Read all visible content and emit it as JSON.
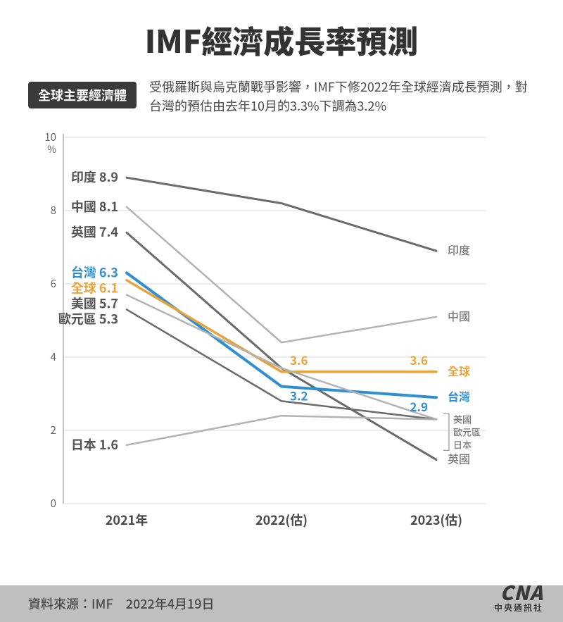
{
  "title": "IMF經濟成長率預測",
  "title_fontsize": 44,
  "pill_label": "全球主要經濟體",
  "pill_fontsize": 18,
  "subtitle": "受俄羅斯與烏克蘭戰爭影響，IMF下修2022年全球經濟成長預測，對台灣的預估由去年10月的3.3%下調為3.2%",
  "subtitle_fontsize": 18,
  "footer_source": "資料來源：IMF　2022年4月19日",
  "footer_fontsize": 18,
  "logo_big": "CNA",
  "logo_small": "中央通訊社",
  "chart": {
    "type": "line",
    "background_color": "#ffffff",
    "grid_color": "#d9d9d9",
    "axis_color": "#b0b0b0",
    "ylim": [
      0,
      10
    ],
    "ytick_step": 2,
    "ytick_labels": [
      "0",
      "2",
      "4",
      "6",
      "8",
      "10"
    ],
    "y_unit": "%",
    "y_unit_fontsize": 14,
    "ytick_fontsize": 15,
    "x_categories": [
      "2021年",
      "2022(估)",
      "2023(估)"
    ],
    "xtick_fontsize": 18,
    "label_left_fontsize": 18,
    "label_right_fontsize": 16,
    "data_label_fontsize": 17,
    "series": [
      {
        "name": "印度",
        "values": [
          8.9,
          8.2,
          6.9
        ],
        "color": "#6b6b6b",
        "width": 3,
        "left_label": "印度 8.9",
        "right_label": "印度"
      },
      {
        "name": "中國",
        "values": [
          8.1,
          4.4,
          5.1
        ],
        "color": "#b3b3b3",
        "width": 2.5,
        "left_label": "中國 8.1",
        "right_label": "中國"
      },
      {
        "name": "英國",
        "values": [
          7.4,
          3.7,
          1.2
        ],
        "color": "#6b6b6b",
        "width": 3,
        "left_label": "英國 7.4",
        "right_label": "英國"
      },
      {
        "name": "台灣",
        "values": [
          6.3,
          3.2,
          2.9
        ],
        "color": "#2f8fd0",
        "width": 4,
        "left_label": "台灣 6.3",
        "right_label": "台灣",
        "left_label_color": "#2f8fd0",
        "right_label_color": "#2f8fd0",
        "show_values": [
          null,
          "3.2",
          "2.9"
        ]
      },
      {
        "name": "全球",
        "values": [
          6.1,
          3.6,
          3.6
        ],
        "color": "#e8a33d",
        "width": 3.5,
        "left_label": "全球 6.1",
        "right_label": "全球",
        "left_label_color": "#e8a33d",
        "right_label_color": "#e8a33d",
        "show_values": [
          null,
          "3.6",
          "3.6"
        ]
      },
      {
        "name": "美國",
        "values": [
          5.7,
          3.7,
          2.3
        ],
        "color": "#b3b3b3",
        "width": 2.5,
        "left_label": "美國 5.7",
        "right_label": "美國"
      },
      {
        "name": "歐元區",
        "values": [
          5.3,
          2.8,
          2.3
        ],
        "color": "#6b6b6b",
        "width": 2.5,
        "left_label": "歐元區 5.3",
        "right_label": "歐元區"
      },
      {
        "name": "日本",
        "values": [
          1.6,
          2.4,
          2.3
        ],
        "color": "#b3b3b3",
        "width": 2.5,
        "left_label": "日本 1.6",
        "right_label": "日本"
      }
    ],
    "right_label_order": [
      "印度",
      "中國",
      "全球",
      "台灣",
      "美國",
      "歐元區",
      "日本",
      "英國"
    ],
    "right_bracket_group": [
      "美國",
      "歐元區",
      "日本"
    ]
  }
}
